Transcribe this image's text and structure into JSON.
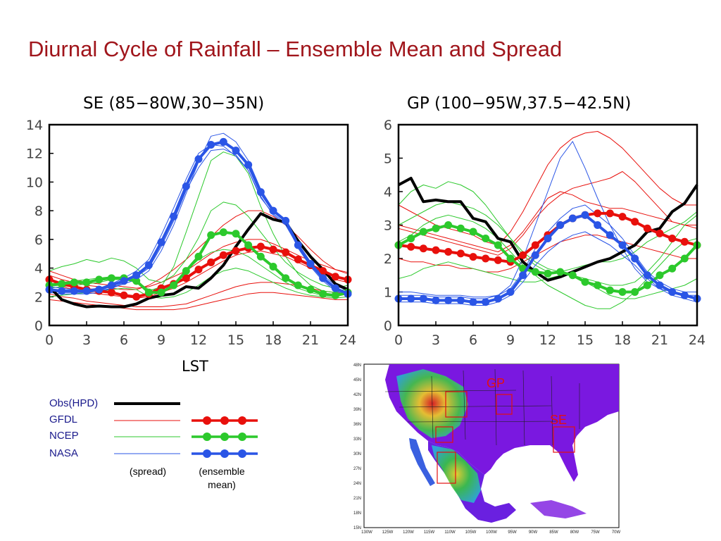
{
  "slide": {
    "title": "Diurnal Cycle of Rainfall – Ensemble Mean and Spread"
  },
  "colors": {
    "obs": "#000000",
    "gfdl": "#e8100c",
    "ncep": "#2cc92c",
    "nasa": "#2a55e6",
    "title": "#a0151b"
  },
  "chart_data": [
    {
      "type": "line",
      "title": "SE (85−80W,30−35N)",
      "xlabel": "LST",
      "ylabel": "",
      "xlim": [
        0,
        24
      ],
      "ylim": [
        0,
        14
      ],
      "xticks": [
        0,
        3,
        6,
        9,
        12,
        15,
        18,
        21,
        24
      ],
      "yticks": [
        0,
        2,
        4,
        6,
        8,
        10,
        12,
        14
      ],
      "x": [
        0,
        1,
        2,
        3,
        4,
        5,
        6,
        7,
        8,
        9,
        10,
        11,
        12,
        13,
        14,
        15,
        16,
        17,
        18,
        19,
        20,
        21,
        22,
        23,
        24
      ],
      "series": [
        {
          "name": "Obs(HPD)",
          "kind": "obs",
          "values": [
            2.7,
            1.8,
            1.5,
            1.3,
            1.35,
            1.3,
            1.3,
            1.5,
            1.9,
            2.1,
            2.2,
            2.7,
            2.6,
            3.3,
            4.2,
            5.5,
            6.7,
            7.8,
            7.4,
            7.2,
            5.9,
            4.8,
            3.9,
            2.9,
            2.5
          ]
        },
        {
          "name": "GFDL",
          "kind": "mean",
          "values": [
            3.2,
            2.9,
            2.7,
            2.5,
            2.4,
            2.3,
            2.1,
            2.0,
            2.2,
            2.6,
            2.9,
            3.3,
            3.9,
            4.4,
            4.9,
            5.2,
            5.4,
            5.5,
            5.3,
            5.1,
            4.6,
            4.2,
            3.8,
            3.4,
            3.2
          ]
        },
        {
          "name": "NCEP",
          "kind": "mean",
          "values": [
            2.8,
            2.9,
            3.0,
            3.0,
            3.2,
            3.3,
            3.3,
            3.1,
            2.3,
            2.3,
            2.8,
            3.8,
            4.8,
            6.3,
            6.5,
            6.4,
            5.6,
            4.8,
            4.1,
            3.3,
            2.8,
            2.5,
            2.2,
            2.1,
            2.3
          ]
        },
        {
          "name": "NASA",
          "kind": "mean",
          "values": [
            2.5,
            2.4,
            2.4,
            2.4,
            2.5,
            2.8,
            3.1,
            3.5,
            4.2,
            5.8,
            7.6,
            9.7,
            11.6,
            12.6,
            12.8,
            12.2,
            11.2,
            9.3,
            8.0,
            7.3,
            5.6,
            4.3,
            3.3,
            2.6,
            2.2
          ]
        },
        {
          "name": "GFDL spread 1",
          "kind": "spread-gfdl",
          "values": [
            3.5,
            3.2,
            3.0,
            2.8,
            2.7,
            2.6,
            2.5,
            2.5,
            2.8,
            3.3,
            3.9,
            4.6,
            5.4,
            6.2,
            7.0,
            7.6,
            8.0,
            8.0,
            7.6,
            7.0,
            6.2,
            5.3,
            4.5,
            3.9,
            3.6
          ]
        },
        {
          "name": "GFDL spread 2",
          "kind": "spread-gfdl",
          "values": [
            3.0,
            2.7,
            2.5,
            2.3,
            2.2,
            2.1,
            2.0,
            1.9,
            2.0,
            2.3,
            2.6,
            3.0,
            3.5,
            4.0,
            4.5,
            4.9,
            5.1,
            5.2,
            5.0,
            4.8,
            4.4,
            4.0,
            3.6,
            3.2,
            3.0
          ]
        },
        {
          "name": "GFDL spread 3",
          "kind": "spread-gfdl",
          "values": [
            2.2,
            2.0,
            1.9,
            1.7,
            1.6,
            1.5,
            1.4,
            1.3,
            1.3,
            1.3,
            1.4,
            1.5,
            1.8,
            2.1,
            2.4,
            2.7,
            2.9,
            3.0,
            3.0,
            2.9,
            2.8,
            2.6,
            2.4,
            2.3,
            2.2
          ]
        },
        {
          "name": "GFDL spread 4",
          "kind": "spread-gfdl",
          "values": [
            3.8,
            3.5,
            3.2,
            3.0,
            2.9,
            2.8,
            2.7,
            2.6,
            2.7,
            3.0,
            3.4,
            3.8,
            4.4,
            5.0,
            5.5,
            5.8,
            6.0,
            6.0,
            5.7,
            5.3,
            4.9,
            4.5,
            4.2,
            3.9,
            3.7
          ]
        },
        {
          "name": "GFDL spread 5",
          "kind": "spread-gfdl",
          "values": [
            1.8,
            1.7,
            1.6,
            1.5,
            1.4,
            1.3,
            1.2,
            1.1,
            1.1,
            1.1,
            1.1,
            1.2,
            1.4,
            1.6,
            1.8,
            2.0,
            2.2,
            2.3,
            2.3,
            2.2,
            2.1,
            2.0,
            1.9,
            1.8,
            1.8
          ]
        },
        {
          "name": "NCEP spread 1",
          "kind": "spread-ncep",
          "values": [
            3.8,
            4.1,
            4.3,
            4.6,
            4.4,
            4.7,
            4.5,
            4.0,
            3.2,
            3.0,
            3.5,
            4.6,
            6.1,
            8.0,
            8.6,
            8.4,
            7.6,
            6.5,
            5.4,
            4.4,
            3.7,
            3.2,
            2.8,
            2.6,
            2.8
          ]
        },
        {
          "name": "NCEP spread 2",
          "kind": "spread-ncep",
          "values": [
            2.6,
            2.7,
            2.8,
            2.9,
            3.0,
            3.2,
            3.2,
            3.0,
            2.4,
            2.7,
            4.1,
            6.5,
            9.0,
            11.5,
            12.1,
            11.8,
            10.6,
            8.3,
            6.4,
            4.8,
            3.6,
            2.8,
            2.4,
            2.3,
            2.6
          ]
        },
        {
          "name": "NCEP spread 3",
          "kind": "spread-ncep",
          "values": [
            2.0,
            2.1,
            2.2,
            2.3,
            2.4,
            2.5,
            2.6,
            2.5,
            2.0,
            1.9,
            2.0,
            2.3,
            2.8,
            3.4,
            3.8,
            4.0,
            3.8,
            3.4,
            3.0,
            2.6,
            2.3,
            2.1,
            2.0,
            1.9,
            2.0
          ]
        },
        {
          "name": "NCEP spread 4",
          "kind": "spread-ncep",
          "values": [
            2.9,
            3.0,
            3.1,
            3.2,
            3.3,
            3.4,
            3.3,
            3.1,
            2.5,
            2.5,
            2.9,
            3.8,
            4.6,
            5.1,
            5.3,
            5.2,
            4.8,
            4.2,
            3.6,
            3.0,
            2.6,
            2.3,
            2.1,
            2.0,
            2.2
          ]
        },
        {
          "name": "NASA spread 1",
          "kind": "spread-nasa",
          "values": [
            2.4,
            2.3,
            2.3,
            2.3,
            2.4,
            2.6,
            2.9,
            3.2,
            3.8,
            5.2,
            7.0,
            9.2,
            11.4,
            13.2,
            13.4,
            12.8,
            11.5,
            9.5,
            8.1,
            7.2,
            5.4,
            4.1,
            3.1,
            2.4,
            2.1
          ]
        },
        {
          "name": "NASA spread 2",
          "kind": "spread-nasa",
          "values": [
            2.7,
            2.6,
            2.5,
            2.5,
            2.6,
            2.9,
            3.3,
            3.8,
            4.6,
            6.3,
            8.2,
            10.2,
            12.0,
            12.6,
            12.5,
            11.8,
            10.8,
            8.9,
            7.8,
            7.1,
            5.6,
            4.4,
            3.5,
            2.8,
            2.4
          ]
        },
        {
          "name": "NASA spread 3",
          "kind": "spread-nasa",
          "values": [
            2.3,
            2.2,
            2.2,
            2.2,
            2.3,
            2.6,
            3.0,
            3.4,
            4.0,
            5.5,
            7.3,
            9.4,
            11.0,
            12.2,
            12.3,
            11.9,
            10.8,
            9.0,
            7.7,
            7.0,
            5.5,
            4.2,
            3.2,
            2.5,
            2.1
          ]
        }
      ]
    },
    {
      "type": "line",
      "title": "GP (100−95W,37.5−42.5N)",
      "xlabel": "",
      "ylabel": "",
      "xlim": [
        0,
        24
      ],
      "ylim": [
        0,
        6
      ],
      "xticks": [
        0,
        3,
        6,
        9,
        12,
        15,
        18,
        21,
        24
      ],
      "yticks": [
        0,
        1,
        2,
        3,
        4,
        5,
        6
      ],
      "x": [
        0,
        1,
        2,
        3,
        4,
        5,
        6,
        7,
        8,
        9,
        10,
        11,
        12,
        13,
        14,
        15,
        16,
        17,
        18,
        19,
        20,
        21,
        22,
        23,
        24
      ],
      "series": [
        {
          "name": "Obs(HPD)",
          "kind": "obs",
          "values": [
            4.2,
            4.4,
            3.7,
            3.75,
            3.7,
            3.7,
            3.2,
            3.1,
            2.6,
            2.5,
            1.9,
            1.6,
            1.35,
            1.45,
            1.6,
            1.75,
            1.9,
            2.0,
            2.2,
            2.4,
            2.8,
            2.9,
            3.4,
            3.65,
            4.2
          ]
        },
        {
          "name": "GFDL",
          "kind": "mean",
          "values": [
            2.4,
            2.35,
            2.3,
            2.25,
            2.2,
            2.15,
            2.05,
            2.0,
            1.95,
            1.9,
            2.1,
            2.4,
            2.7,
            3.0,
            3.2,
            3.3,
            3.35,
            3.35,
            3.25,
            3.1,
            2.9,
            2.75,
            2.6,
            2.5,
            2.4
          ]
        },
        {
          "name": "NCEP",
          "kind": "mean",
          "values": [
            2.4,
            2.6,
            2.8,
            2.9,
            3.0,
            2.9,
            2.8,
            2.6,
            2.4,
            2.0,
            1.7,
            1.6,
            1.55,
            1.6,
            1.5,
            1.3,
            1.2,
            1.05,
            1.0,
            1.0,
            1.2,
            1.5,
            1.7,
            2.0,
            2.4
          ]
        },
        {
          "name": "NASA",
          "kind": "mean",
          "values": [
            0.8,
            0.8,
            0.8,
            0.75,
            0.75,
            0.75,
            0.7,
            0.7,
            0.8,
            1.0,
            1.5,
            2.1,
            2.6,
            3.0,
            3.2,
            3.3,
            3.0,
            2.7,
            2.4,
            2.0,
            1.5,
            1.2,
            1.0,
            0.9,
            0.8
          ]
        },
        {
          "name": "GFDL spread 1",
          "kind": "spread-gfdl",
          "values": [
            3.6,
            3.4,
            3.2,
            3.0,
            2.9,
            2.8,
            2.7,
            2.5,
            2.4,
            2.8,
            3.4,
            4.1,
            4.8,
            5.3,
            5.6,
            5.75,
            5.8,
            5.6,
            5.3,
            4.9,
            4.5,
            4.1,
            3.8,
            3.6,
            3.6
          ]
        },
        {
          "name": "GFDL spread 2",
          "kind": "spread-gfdl",
          "values": [
            2.9,
            2.8,
            2.7,
            2.6,
            2.5,
            2.4,
            2.3,
            2.2,
            2.1,
            2.3,
            2.7,
            3.2,
            3.6,
            3.9,
            4.1,
            4.2,
            4.3,
            4.4,
            4.6,
            4.3,
            3.9,
            3.5,
            3.1,
            3.0,
            2.9
          ]
        },
        {
          "name": "GFDL spread 3",
          "kind": "spread-gfdl",
          "values": [
            2.0,
            1.9,
            1.9,
            1.8,
            1.8,
            1.7,
            1.7,
            1.6,
            1.6,
            1.7,
            1.9,
            2.1,
            2.3,
            2.5,
            2.6,
            2.7,
            2.7,
            2.6,
            2.5,
            2.4,
            2.3,
            2.2,
            2.1,
            2.0,
            2.0
          ]
        },
        {
          "name": "GFDL spread 4",
          "kind": "spread-gfdl",
          "values": [
            3.0,
            2.9,
            2.8,
            2.7,
            2.6,
            2.5,
            2.4,
            2.3,
            2.2,
            2.4,
            2.8,
            3.3,
            3.8,
            4.0,
            3.9,
            3.7,
            3.6,
            3.5,
            3.5,
            3.4,
            3.3,
            3.2,
            3.1,
            3.0,
            3.0
          ]
        },
        {
          "name": "NCEP spread 1",
          "kind": "spread-ncep",
          "values": [
            3.6,
            4.0,
            4.2,
            4.1,
            4.3,
            4.2,
            4.0,
            3.6,
            3.1,
            2.6,
            2.1,
            1.8,
            1.6,
            1.6,
            1.7,
            1.8,
            1.9,
            1.9,
            2.0,
            2.2,
            2.5,
            2.7,
            2.9,
            3.1,
            3.4
          ]
        },
        {
          "name": "NCEP spread 2",
          "kind": "spread-ncep",
          "values": [
            3.0,
            3.2,
            3.4,
            3.6,
            3.7,
            3.6,
            3.5,
            3.3,
            3.0,
            2.6,
            2.2,
            1.9,
            1.7,
            1.6,
            1.5,
            1.4,
            1.3,
            1.2,
            1.2,
            1.3,
            1.6,
            2.0,
            2.5,
            3.0,
            3.3
          ]
        },
        {
          "name": "NCEP spread 3",
          "kind": "spread-ncep",
          "values": [
            1.4,
            1.5,
            1.7,
            1.8,
            1.9,
            1.8,
            1.7,
            1.6,
            1.5,
            1.4,
            1.3,
            1.3,
            1.4,
            1.5,
            1.5,
            1.3,
            1.1,
            0.9,
            0.8,
            0.8,
            0.9,
            1.0,
            1.1,
            1.2,
            1.4
          ]
        },
        {
          "name": "NCEP spread 4",
          "kind": "spread-ncep",
          "values": [
            2.5,
            2.7,
            3.0,
            3.2,
            3.3,
            3.2,
            3.1,
            2.9,
            2.6,
            2.2,
            1.8,
            1.5,
            1.2,
            1.0,
            0.8,
            0.6,
            0.5,
            0.5,
            0.7,
            1.0,
            1.4,
            1.8,
            2.2,
            2.5,
            2.6
          ]
        },
        {
          "name": "NASA spread 1",
          "kind": "spread-nasa",
          "values": [
            0.9,
            0.9,
            0.9,
            0.85,
            0.85,
            0.85,
            0.8,
            0.8,
            0.9,
            1.2,
            2.0,
            3.0,
            4.0,
            5.0,
            5.5,
            4.7,
            3.8,
            3.0,
            2.3,
            1.7,
            1.3,
            1.1,
            1.0,
            0.9,
            0.9
          ]
        },
        {
          "name": "NASA spread 2",
          "kind": "spread-nasa",
          "values": [
            0.7,
            0.7,
            0.7,
            0.65,
            0.65,
            0.65,
            0.6,
            0.6,
            0.7,
            0.9,
            1.3,
            1.8,
            2.2,
            2.5,
            2.7,
            2.8,
            2.6,
            2.4,
            2.1,
            1.8,
            1.4,
            1.1,
            0.9,
            0.8,
            0.7
          ]
        },
        {
          "name": "NASA spread 3",
          "kind": "spread-nasa",
          "values": [
            1.0,
            1.0,
            0.95,
            0.9,
            0.9,
            0.9,
            0.85,
            0.85,
            0.9,
            1.1,
            1.6,
            2.3,
            2.8,
            3.2,
            3.5,
            3.6,
            3.3,
            3.0,
            2.6,
            2.1,
            1.6,
            1.3,
            1.1,
            1.0,
            1.0
          ]
        }
      ]
    }
  ],
  "legend": {
    "items": [
      {
        "label": "Obs(HPD)",
        "kind": "obs"
      },
      {
        "label": "GFDL",
        "kind": "gfdl"
      },
      {
        "label": "NCEP",
        "kind": "ncep"
      },
      {
        "label": "NASA",
        "kind": "nasa"
      }
    ],
    "note_spread": "(spread)",
    "note_mean_1": "(ensemble",
    "note_mean_2": "mean)"
  },
  "map": {
    "lat_labels": [
      "48N",
      "45N",
      "42N",
      "39N",
      "36N",
      "33N",
      "30N",
      "27N",
      "24N",
      "21N",
      "18N",
      "15N"
    ],
    "lon_labels": [
      "130W",
      "125W",
      "120W",
      "115W",
      "110W",
      "105W",
      "100W",
      "95W",
      "90W",
      "85W",
      "80W",
      "75W",
      "70W"
    ],
    "region_gp": "GP",
    "region_se": "SE"
  }
}
